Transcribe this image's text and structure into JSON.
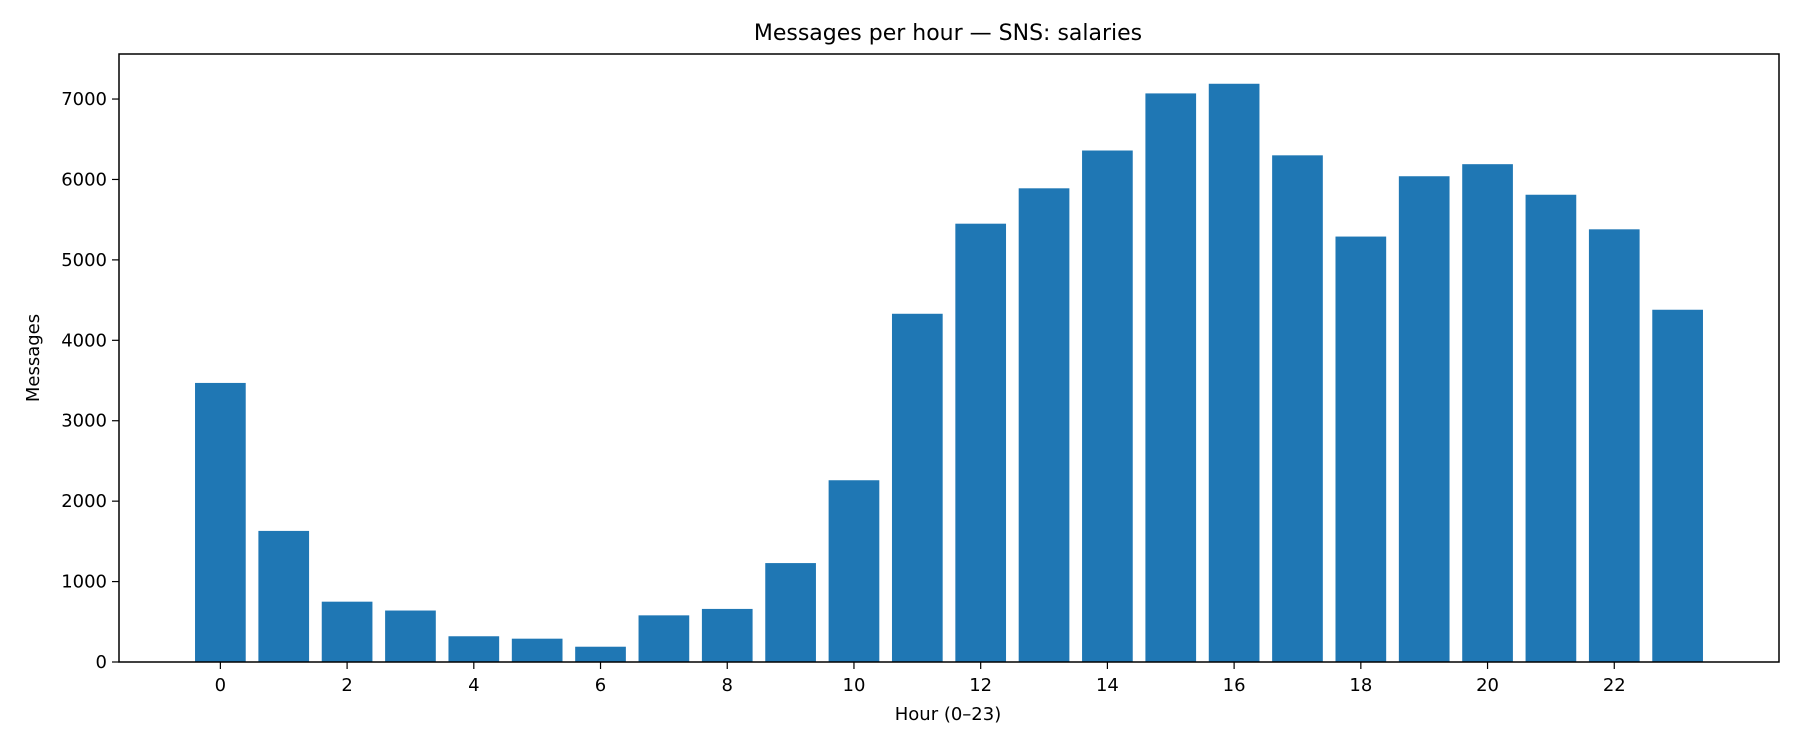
{
  "chart_data": {
    "type": "bar",
    "title": "Messages per hour — SNS: salaries",
    "xlabel": "Hour (0–23)",
    "ylabel": "Messages",
    "categories": [
      0,
      1,
      2,
      3,
      4,
      5,
      6,
      7,
      8,
      9,
      10,
      11,
      12,
      13,
      14,
      15,
      16,
      17,
      18,
      19,
      20,
      21,
      22,
      23
    ],
    "values": [
      3470,
      1630,
      750,
      640,
      320,
      290,
      190,
      580,
      660,
      1230,
      2260,
      4330,
      5450,
      5890,
      6360,
      7070,
      7190,
      6300,
      5290,
      6040,
      6190,
      5810,
      5380,
      4380
    ],
    "xticks": [
      0,
      2,
      4,
      6,
      8,
      10,
      12,
      14,
      16,
      18,
      20,
      22
    ],
    "yticks": [
      0,
      1000,
      2000,
      3000,
      4000,
      5000,
      6000,
      7000
    ],
    "xlim": [
      -1.6,
      24.6
    ],
    "ylim": [
      0,
      7560
    ],
    "bar_color": "#1f77b4",
    "grid": false,
    "legend": "none"
  }
}
